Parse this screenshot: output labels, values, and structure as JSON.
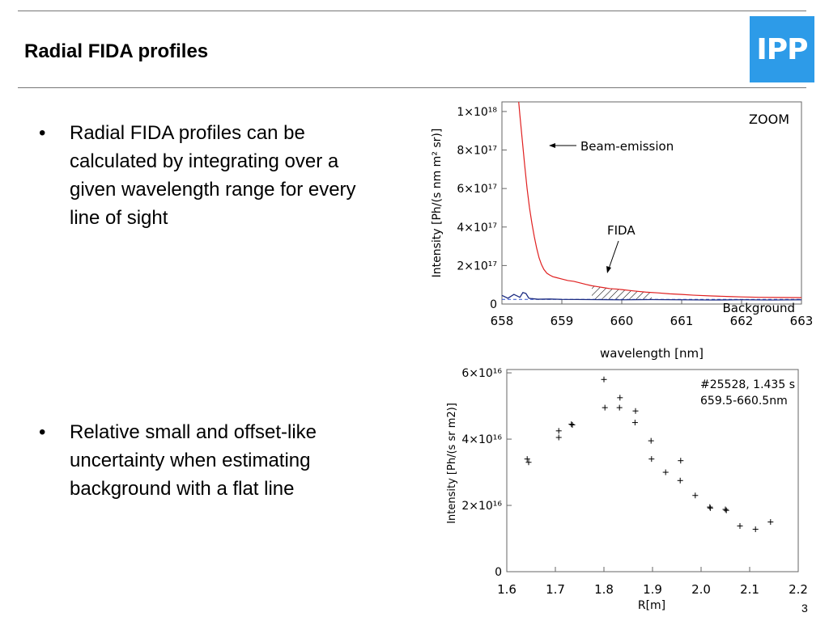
{
  "slide": {
    "title": "Radial FIDA profiles",
    "logo_text": "IPP",
    "page_number": "3",
    "bullets": [
      "Radial FIDA profiles can be calculated by integrating over a given wavelength range for every line of sight",
      "Relative small and offset-like uncertainty when estimating background with a flat line"
    ],
    "bullet_marker": "•",
    "colors": {
      "logo": "#2d9be8",
      "spectrum_line": "#e02020",
      "background_line": "#1a2a80"
    }
  },
  "chart_data": [
    {
      "type": "line",
      "xlabel": "wavelength [nm]",
      "ylabel": "Intensity [Ph/(s nm m² sr)]",
      "xlim": [
        658,
        663
      ],
      "ylim": [
        0,
        1.05e+18
      ],
      "x_ticks": [
        "658",
        "659",
        "660",
        "661",
        "662",
        "663"
      ],
      "y_ticks": [
        {
          "value": 0,
          "label": "0"
        },
        {
          "value": 2e+17,
          "label": "2×10¹⁷"
        },
        {
          "value": 4e+17,
          "label": "4×10¹⁷"
        },
        {
          "value": 6e+17,
          "label": "6×10¹⁷"
        },
        {
          "value": 8e+17,
          "label": "8×10¹⁷"
        },
        {
          "value": 1e+18,
          "label": "1×10¹⁸"
        }
      ],
      "annotations": {
        "zoom": "ZOOM",
        "beam_emission": "Beam-emission",
        "fida": "FIDA",
        "background": "Background"
      },
      "fida_shaded_range": [
        659.5,
        660.5
      ],
      "series": [
        {
          "name": "spectrum",
          "x": [
            658.28,
            658.3,
            658.34,
            658.38,
            658.42,
            658.46,
            658.5,
            658.54,
            658.58,
            658.62,
            658.66,
            658.7,
            658.75,
            658.8,
            658.85,
            658.9,
            659.0,
            659.1,
            659.2,
            659.3,
            659.4,
            659.5,
            659.6,
            659.7,
            659.8,
            659.9,
            660.0,
            660.2,
            660.4,
            660.6,
            660.8,
            661.0,
            661.2,
            661.5,
            661.8,
            662.0,
            662.3,
            662.6,
            663.0
          ],
          "y": [
            1.05e+18,
            9.8e+17,
            8.5e+17,
            7.2e+17,
            6e+17,
            5e+17,
            4.2e+17,
            3.5e+17,
            2.9e+17,
            2.4e+17,
            2.05e+17,
            1.8e+17,
            1.6e+17,
            1.5e+17,
            1.42e+17,
            1.38e+17,
            1.3e+17,
            1.22e+17,
            1.18e+17,
            1.1e+17,
            1.02e+17,
            9.5e+16,
            9e+16,
            8.5e+16,
            8e+16,
            7.8e+16,
            7.5e+16,
            6.8e+16,
            6.2e+16,
            5.8e+16,
            5.3e+16,
            5e+16,
            4.6e+16,
            4.2e+16,
            3.9e+16,
            3.7e+16,
            3.5e+16,
            3.4e+16,
            3.3e+16
          ]
        },
        {
          "name": "background",
          "x": [
            658.0,
            658.1,
            658.2,
            658.3,
            658.35,
            658.4,
            658.45,
            658.5,
            658.6,
            658.8,
            659.0,
            659.5,
            660.0,
            660.5,
            661.0,
            661.5,
            662.0,
            662.5,
            663.0
          ],
          "y": [
            4.5e+16,
            3e+16,
            5e+16,
            3.5e+16,
            6e+16,
            5.5e+16,
            3e+16,
            2.8e+16,
            2.5e+16,
            2.6e+16,
            2.4e+16,
            2.3e+16,
            2.2e+16,
            2.3e+16,
            2.2e+16,
            2.1e+16,
            2.2e+16,
            2.1e+16,
            2.2e+16
          ]
        }
      ]
    },
    {
      "type": "scatter",
      "xlabel": "R[m]",
      "ylabel": "Intensity [Ph/(s sr m2)]",
      "xlim": [
        1.6,
        2.2
      ],
      "ylim": [
        0,
        6.1e+16
      ],
      "x_ticks": [
        "1.6",
        "1.7",
        "1.8",
        "1.9",
        "2.0",
        "2.1",
        "2.2"
      ],
      "y_ticks": [
        {
          "value": 0,
          "label": "0"
        },
        {
          "value": 2e+16,
          "label": "2×10¹⁶"
        },
        {
          "value": 4e+16,
          "label": "4×10¹⁶"
        },
        {
          "value": 6e+16,
          "label": "6×10¹⁶"
        }
      ],
      "annotation_lines": [
        "#25528, 1.435 s",
        "659.5-660.5nm"
      ],
      "points": [
        {
          "x": 1.642,
          "y": 3.4e+16
        },
        {
          "x": 1.645,
          "y": 3.3e+16
        },
        {
          "x": 1.707,
          "y": 4.25e+16
        },
        {
          "x": 1.707,
          "y": 4.05e+16
        },
        {
          "x": 1.733,
          "y": 4.45e+16
        },
        {
          "x": 1.735,
          "y": 4.43e+16
        },
        {
          "x": 1.8,
          "y": 5.8e+16
        },
        {
          "x": 1.802,
          "y": 4.95e+16
        },
        {
          "x": 1.833,
          "y": 5.25e+16
        },
        {
          "x": 1.832,
          "y": 4.95e+16
        },
        {
          "x": 1.865,
          "y": 4.85e+16
        },
        {
          "x": 1.864,
          "y": 4.5e+16
        },
        {
          "x": 1.897,
          "y": 3.95e+16
        },
        {
          "x": 1.898,
          "y": 3.4e+16
        },
        {
          "x": 1.927,
          "y": 3e+16
        },
        {
          "x": 1.958,
          "y": 3.35e+16
        },
        {
          "x": 1.957,
          "y": 2.75e+16
        },
        {
          "x": 1.988,
          "y": 2.3e+16
        },
        {
          "x": 2.018,
          "y": 1.95e+16
        },
        {
          "x": 2.019,
          "y": 1.92e+16
        },
        {
          "x": 2.05,
          "y": 1.88e+16
        },
        {
          "x": 2.052,
          "y": 1.85e+16
        },
        {
          "x": 2.08,
          "y": 1.38e+16
        },
        {
          "x": 2.112,
          "y": 1.28e+16
        },
        {
          "x": 2.143,
          "y": 1.5e+16
        }
      ]
    }
  ]
}
